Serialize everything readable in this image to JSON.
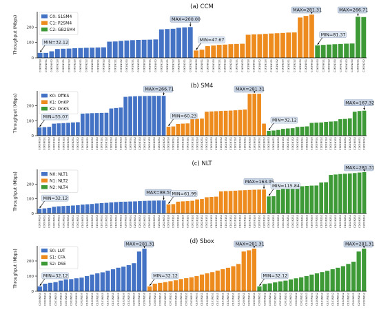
{
  "chart_data": [
    {
      "type": "bar",
      "title": "(a) CCM",
      "ylabel": "Throughput (Mbps)",
      "ylim": [
        0,
        300
      ],
      "yticks": [
        0,
        100,
        200
      ],
      "grid": false,
      "legend_placement": "top-left",
      "series": [
        {
          "name": "C0: S1SM4",
          "color": "#4472C4",
          "categories": [
            "C0K0N0S0",
            "C0K0N0S1",
            "C0K0N0S2",
            "C0K0N1S0",
            "C0K0N1S1",
            "C0K0N1S2",
            "C0K0N2S0",
            "C0K0N2S1",
            "C0K0N2S2",
            "C0K1N0S0",
            "C0K1N0S1",
            "C0K1N0S2",
            "C0K1N1S0",
            "C0K1N1S1",
            "C0K1N1S2",
            "C0K1N2S0",
            "C0K1N2S1",
            "C0K1N2S2",
            "C0K2N0S0",
            "C0K2N0S1",
            "C0K2N0S2",
            "C0K2N1S0",
            "C0K2N1S1",
            "C0K2N1S2",
            "C0K2N2S0",
            "C0K2N2S1",
            "C0K2N2S2"
          ],
          "values": [
            32.12,
            32.12,
            42.5,
            57.6,
            59.1,
            60.2,
            62.5,
            64.0,
            65.3,
            66.1,
            67.2,
            68.4,
            105.2,
            106.5,
            110.3,
            112.8,
            115.0,
            116.4,
            117.5,
            118.2,
            119.6,
            185.0,
            187.2,
            188.9,
            195.3,
            198.1,
            200.0
          ]
        },
        {
          "name": "C1: P2SM4",
          "color": "#ED8B1E",
          "categories": [
            "C1K0N0S0",
            "C1K0N0S1",
            "C1K0N0S2",
            "C1K0N1S0",
            "C1K0N1S1",
            "C1K0N1S2",
            "C1K0N2S0",
            "C1K0N2S1",
            "C1K0N2S2",
            "C1K1N0S0",
            "C1K1N0S1",
            "C1K1N0S2",
            "C1K1N1S0",
            "C1K1N1S1",
            "C1K1N1S2",
            "C1K1N2S0",
            "C1K1N2S1",
            "C1K1N2S2",
            "C1K2N0S0",
            "C1K2N0S1",
            "C1K2N0S2"
          ],
          "values": [
            47.67,
            53.2,
            76.4,
            80.1,
            84.5,
            86.2,
            88.9,
            90.3,
            91.6,
            150.2,
            152.4,
            153.6,
            155.8,
            158.3,
            160.1,
            162.0,
            164.4,
            165.2,
            262.3,
            272.5,
            281.31
          ]
        },
        {
          "name": "C2: GB2SM4",
          "color": "#3D9A36",
          "categories": [
            "C2K0N0S0",
            "C2K0N0S1",
            "C2K0N0S2",
            "C2K0N1S0",
            "C2K0N1S1",
            "C2K0N1S2",
            "C2K0N2S0",
            "C2K0N2S1",
            "C2K0N2S2"
          ],
          "values": [
            81.37,
            84.2,
            86.5,
            88.4,
            90.2,
            92.1,
            93.3,
            266.71,
            265.2
          ]
        }
      ],
      "annotations": [
        {
          "text": "MIN=32.12",
          "series": 0,
          "point": 0
        },
        {
          "text": "MAX=200.00",
          "series": 0,
          "point": 26
        },
        {
          "text": "MIN=47.67",
          "series": 1,
          "point": 0
        },
        {
          "text": "MAX=281.31",
          "series": 1,
          "point": 20
        },
        {
          "text": "MIN=81.37",
          "series": 2,
          "point": 0
        },
        {
          "text": "MAX=266.71",
          "series": 2,
          "point": 7
        }
      ]
    },
    {
      "type": "bar",
      "title": "(b) SM4",
      "ylabel": "Throughput (Mbps)",
      "ylim": [
        0,
        300
      ],
      "yticks": [
        0,
        100,
        200
      ],
      "grid": false,
      "legend_placement": "top-left",
      "series": [
        {
          "name": "K0: OffKS",
          "color": "#4472C4",
          "categories": [
            "C0K0N0S0",
            "C0K0N0S1",
            "C0K0N0S2",
            "C0K0N1S0",
            "C0K0N1S1",
            "C0K0N1S2",
            "C0K0N2S0",
            "C0K0N2S1",
            "C0K0N2S2",
            "C1K0N0S0",
            "C1K0N0S1",
            "C1K0N0S2",
            "C1K0N1S0",
            "C1K0N1S1",
            "C1K0N1S2",
            "C1K0N2S0",
            "C1K0N2S1",
            "C1K0N2S2",
            "C2K0N0S0",
            "C2K0N0S1",
            "C2K0N0S2",
            "C2K0N1S0",
            "C2K0N1S1",
            "C2K0N1S2",
            "C2K0N2S0",
            "C2K0N2S1",
            "C2K0N2S2"
          ],
          "values": [
            55.07,
            57.2,
            58.9,
            80.3,
            82.4,
            84.1,
            86.0,
            88.6,
            90.2,
            147.5,
            149.3,
            150.8,
            151.6,
            152.8,
            153.5,
            182.0,
            185.3,
            188.4,
            260.2,
            262.5,
            264.0,
            265.1,
            265.8,
            266.2,
            266.5,
            266.6,
            266.71
          ]
        },
        {
          "name": "K1: OnKP",
          "color": "#ED8B1E",
          "categories": [
            "C0K1N0S0",
            "C0K1N0S1",
            "C0K1N0S2",
            "C0K1N1S0",
            "C0K1N1S1",
            "C0K1N1S2",
            "C0K1N2S0",
            "C0K1N2S1",
            "C0K1N2S2",
            "C1K1N0S0",
            "C1K1N0S1",
            "C1K1N0S2",
            "C1K1N1S0",
            "C1K1N1S1",
            "C1K1N1S2",
            "C1K1N2S0",
            "C1K1N2S1",
            "C1K1N2S2",
            "C2K1N0S0",
            "C2K1N0S1",
            "C2K1N0S2"
          ],
          "values": [
            60.23,
            61.8,
            78.4,
            80.6,
            82.1,
            110.3,
            112.5,
            114.2,
            160.4,
            162.3,
            164.0,
            165.5,
            166.8,
            168.2,
            170.1,
            172.4,
            175.0,
            280.2,
            281.31,
            281.0,
            80.5
          ]
        },
        {
          "name": "K2: OnKS",
          "color": "#3D9A36",
          "categories": [
            "C0K2N0S0",
            "C0K2N0S1",
            "C0K2N0S2",
            "C0K2N1S0",
            "C0K2N1S1",
            "C0K2N1S2",
            "C0K2N2S0",
            "C0K2N2S1",
            "C0K2N2S2",
            "C1K2N0S0",
            "C1K2N0S1",
            "C1K2N0S2",
            "C1K2N1S0",
            "C1K2N1S1",
            "C1K2N1S2",
            "C1K2N2S0",
            "C1K2N2S1",
            "C1K2N2S2",
            "C2K2N0S0",
            "C2K2N0S1",
            "C2K2N0S2"
          ],
          "values": [
            32.12,
            34.5,
            38.2,
            45.6,
            48.3,
            50.1,
            58.4,
            60.2,
            62.3,
            85.6,
            87.2,
            88.4,
            92.1,
            94.5,
            96.2,
            110.4,
            112.3,
            115.6,
            160.2,
            165.0,
            167.32
          ]
        }
      ],
      "annotations": [
        {
          "text": "MIN=55.07",
          "series": 0,
          "point": 0
        },
        {
          "text": "MAX=266.71",
          "series": 0,
          "point": 26
        },
        {
          "text": "MIN=60.23",
          "series": 1,
          "point": 0
        },
        {
          "text": "MAX=281.31",
          "series": 1,
          "point": 18
        },
        {
          "text": "MIN=32.12",
          "series": 2,
          "point": 0
        },
        {
          "text": "MAX=167.32",
          "series": 2,
          "point": 20
        }
      ]
    },
    {
      "type": "bar",
      "title": "(c) NLT",
      "ylabel": "Throughput (Mbps)",
      "ylim": [
        0,
        300
      ],
      "yticks": [
        0,
        100,
        200
      ],
      "grid": false,
      "legend_placement": "top-left",
      "series": [
        {
          "name": "N0: NLT1",
          "color": "#4472C4",
          "categories": [
            "C0K0N0S0",
            "C0K0N0S1",
            "C0K0N0S2",
            "C0K1N0S0",
            "C0K1N0S1",
            "C0K1N0S2",
            "C0K2N0S0",
            "C0K2N0S1",
            "C0K2N0S2",
            "C1K0N0S0",
            "C1K0N0S1",
            "C1K0N0S2",
            "C1K1N0S0",
            "C1K1N0S1",
            "C1K1N0S2",
            "C1K2N0S0",
            "C1K2N0S1",
            "C1K2N0S2",
            "C2K0N0S0",
            "C2K0N0S1",
            "C2K0N0S2",
            "C2K1N0S0",
            "C2K1N0S1",
            "C2K1N0S2",
            "C2K2N0S0",
            "C2K2N0S1",
            "C2K2N0S2"
          ],
          "values": [
            32.12,
            34.5,
            38.2,
            45.3,
            48.6,
            50.4,
            52.3,
            54.1,
            56.0,
            60.2,
            62.4,
            64.5,
            68.2,
            70.4,
            72.5,
            75.3,
            77.6,
            79.8,
            80.2,
            81.5,
            82.4,
            84.1,
            85.6,
            86.7,
            87.4,
            88.1,
            88.58
          ]
        },
        {
          "name": "N1: NLT2",
          "color": "#ED8B1E",
          "categories": [
            "C0K0N1S0",
            "C0K0N1S1",
            "C0K0N1S2",
            "C0K1N1S0",
            "C0K1N1S1",
            "C0K1N1S2",
            "C0K2N1S0",
            "C0K2N1S1",
            "C0K2N1S2",
            "C1K0N1S0",
            "C1K0N1S1",
            "C1K0N1S2",
            "C1K1N1S0",
            "C1K1N1S1",
            "C1K1N1S2",
            "C1K2N1S0",
            "C1K2N1S1",
            "C1K2N1S2",
            "C2K0N1S0",
            "C2K0N1S1",
            "C2K0N1S2"
          ],
          "values": [
            61.99,
            63.5,
            80.2,
            82.6,
            84.1,
            86.5,
            95.3,
            98.2,
            110.4,
            112.6,
            114.5,
            150.3,
            152.4,
            153.5,
            155.2,
            157.4,
            158.6,
            160.3,
            161.5,
            162.4,
            163.05
          ]
        },
        {
          "name": "N2: NLT4",
          "color": "#3D9A36",
          "categories": [
            "C0K0N2S0",
            "C0K0N2S1",
            "C0K0N2S2",
            "C0K1N2S0",
            "C0K1N2S1",
            "C0K1N2S2",
            "C0K2N2S0",
            "C0K2N2S1",
            "C0K2N2S2",
            "C1K0N2S0",
            "C1K0N2S1",
            "C1K0N2S2",
            "C1K1N2S0",
            "C1K1N2S1",
            "C1K1N2S2",
            "C1K2N2S0",
            "C1K2N2S1",
            "C1K2N2S2",
            "C2K0N2S0",
            "C2K0N2S1",
            "C2K0N2S2"
          ],
          "values": [
            115.84,
            117.2,
            160.5,
            170.2,
            175.4,
            180.3,
            183.5,
            185.2,
            187.6,
            189.4,
            190.2,
            210.5,
            212.4,
            262.1,
            265.3,
            268.4,
            270.2,
            272.5,
            275.1,
            278.6,
            281.31
          ]
        }
      ],
      "annotations": [
        {
          "text": "MIN=32.12",
          "series": 0,
          "point": 0
        },
        {
          "text": "MAX=88.58",
          "series": 0,
          "point": 26
        },
        {
          "text": "MIN=61.99",
          "series": 1,
          "point": 0
        },
        {
          "text": "MAX=163.05",
          "series": 1,
          "point": 20
        },
        {
          "text": "MIN=115.84",
          "series": 2,
          "point": 0
        },
        {
          "text": "MAX=281.31",
          "series": 2,
          "point": 20
        }
      ]
    },
    {
      "type": "bar",
      "title": "(d) Sbox",
      "ylabel": "Throughput (Mbps)",
      "ylim": [
        0,
        300
      ],
      "yticks": [
        0,
        100,
        200
      ],
      "grid": false,
      "legend_placement": "top-left",
      "series": [
        {
          "name": "S0: LUT",
          "color": "#4472C4",
          "categories": [
            "C0K0N0S0",
            "C0K0N1S0",
            "C0K0N2S0",
            "C0K1N0S0",
            "C0K1N1S0",
            "C0K1N2S0",
            "C0K2N0S0",
            "C0K2N1S0",
            "C0K2N2S0",
            "C1K0N0S0",
            "C1K0N1S0",
            "C1K0N2S0",
            "C1K1N0S0",
            "C1K1N1S0",
            "C1K1N2S0",
            "C1K2N0S0",
            "C1K2N1S0",
            "C1K2N2S0",
            "C2K0N0S0",
            "C2K0N1S0",
            "C2K0N2S0"
          ],
          "values": [
            32.12,
            50.2,
            55.6,
            60.4,
            70.2,
            78.5,
            80.3,
            85.6,
            90.2,
            100.4,
            110.3,
            118.5,
            125.2,
            135.6,
            145.2,
            155.4,
            162.3,
            172.5,
            185.4,
            262.3,
            281.31
          ]
        },
        {
          "name": "S1: CFA",
          "color": "#ED8B1E",
          "categories": [
            "C0K0N0S1",
            "C0K0N1S1",
            "C0K0N2S1",
            "C0K1N0S1",
            "C0K1N1S1",
            "C0K1N2S1",
            "C0K2N0S1",
            "C0K2N1S1",
            "C0K2N2S1",
            "C1K0N0S1",
            "C1K0N1S1",
            "C1K0N2S1",
            "C1K1N0S1",
            "C1K1N1S1",
            "C1K1N2S1",
            "C1K2N0S1",
            "C1K2N1S1",
            "C1K2N2S1",
            "C2K0N0S1",
            "C2K0N1S1",
            "C2K0N2S1"
          ],
          "values": [
            32.12,
            50.4,
            55.3,
            60.2,
            66.5,
            72.3,
            80.6,
            86.2,
            92.4,
            100.3,
            110.5,
            118.6,
            126.3,
            136.5,
            145.6,
            155.2,
            165.4,
            180.2,
            262.5,
            270.4,
            281.31
          ]
        },
        {
          "name": "S2: DSE",
          "color": "#3D9A36",
          "categories": [
            "C0K0N0S2",
            "C0K0N1S2",
            "C0K0N2S2",
            "C0K1N0S2",
            "C0K1N1S2",
            "C0K1N2S2",
            "C0K2N0S2",
            "C0K2N1S2",
            "C0K2N2S2",
            "C1K0N0S2",
            "C1K0N1S2",
            "C1K0N2S2",
            "C1K1N0S2",
            "C1K1N1S2",
            "C1K1N2S2",
            "C1K2N0S2",
            "C1K2N1S2",
            "C1K2N2S2",
            "C2K0N0S2",
            "C2K0N1S2",
            "C2K0N2S2"
          ],
          "values": [
            32.12,
            48.5,
            52.3,
            58.6,
            65.4,
            70.2,
            78.5,
            85.4,
            92.3,
            100.5,
            110.2,
            118.4,
            126.5,
            135.2,
            145.6,
            155.3,
            165.8,
            180.5,
            195.2,
            262.4,
            281.31
          ]
        }
      ],
      "annotations": [
        {
          "text": "MIN=32.12",
          "series": 0,
          "point": 0
        },
        {
          "text": "MAX=281.31",
          "series": 0,
          "point": 20
        },
        {
          "text": "MIN=32.12",
          "series": 1,
          "point": 0
        },
        {
          "text": "MAX=281.31",
          "series": 1,
          "point": 20
        },
        {
          "text": "MIN=32.12",
          "series": 2,
          "point": 0
        },
        {
          "text": "MAX=281.31",
          "series": 2,
          "point": 20
        }
      ]
    }
  ]
}
